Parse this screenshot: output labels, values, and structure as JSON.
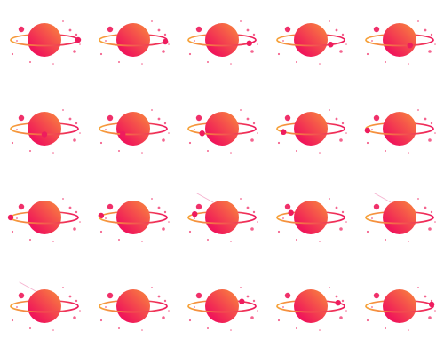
{
  "sheet": {
    "columns": 5,
    "rows": 4,
    "frame_count": 20,
    "background": "#ffffff"
  },
  "sprite": {
    "name": "planet-with-ring",
    "planet_gradient": [
      "#f0165a",
      "#f98a3c"
    ],
    "ring_gradient": [
      "#f6a33a",
      "#ee1c5e"
    ],
    "moon_color": "#ee1c5e",
    "star_color": "#f0306a",
    "comet_color": "#f3a0c4"
  },
  "frames": [
    {
      "moon": 0.0
    },
    {
      "moon": 0.05
    },
    {
      "moon": 0.1
    },
    {
      "moon": 0.15
    },
    {
      "moon": 0.2
    },
    {
      "moon": 0.25
    },
    {
      "moon": 0.3
    },
    {
      "moon": 0.35
    },
    {
      "moon": 0.4
    },
    {
      "moon": 0.45
    },
    {
      "moon": 0.5
    },
    {
      "moon": 0.55
    },
    {
      "moon": 0.6,
      "comet": true
    },
    {
      "moon": 0.65
    },
    {
      "moon": 0.7,
      "comet": true
    },
    {
      "moon": 0.75,
      "comet": true
    },
    {
      "moon": 0.8
    },
    {
      "moon": 0.85
    },
    {
      "moon": 0.9
    },
    {
      "moon": 0.95
    }
  ]
}
